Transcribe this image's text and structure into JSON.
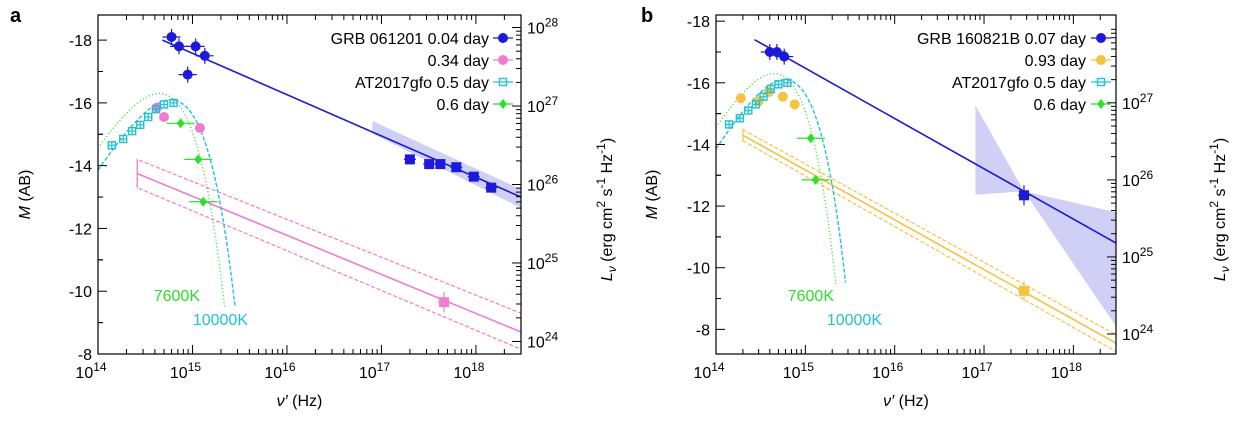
{
  "chart_data": [
    {
      "type": "scatter",
      "panel_label": "a",
      "xlabel_symbol": "ν′",
      "xlabel_unit": " (Hz)",
      "ylabel_symbol": "M",
      "ylabel_unit": " (AB)",
      "y2label_symbol": "L",
      "y2label_sub": "ν",
      "y2label_unit": " (erg cm",
      "y2label_rest": [
        " s",
        " Hz",
        ")"
      ],
      "xscale": "log",
      "xlim": [
        100000000000000.0,
        3e+18
      ],
      "ylim": [
        -8,
        -18.8
      ],
      "yinverted": true,
      "xticks": [
        14,
        15,
        16,
        17,
        18
      ],
      "yticks": [
        -8,
        -10,
        -12,
        -14,
        -16,
        -18
      ],
      "y2ticks": [
        24,
        25,
        26,
        27,
        28
      ],
      "colors": {
        "grb_early": "#1a1ad8",
        "grb_late": "#f07cd0",
        "at_early": "#22c2d2",
        "at_late": "#2ce02c",
        "band": "#c8c8f4"
      },
      "legend": [
        "GRB 061201 0.04 day",
        "0.34 day",
        "AT2017gfo 0.5 day",
        "0.6 day"
      ],
      "legend_position": "top-right",
      "series": [
        {
          "name": "GRB 061201 0.04 day",
          "marker": "circle",
          "color": "#1a1ad8",
          "points": [
            [
              600000000000000.0,
              -18.1
            ],
            [
              720000000000000.0,
              -17.8
            ],
            [
              890000000000000.0,
              -16.9
            ],
            [
              1080000000000000.0,
              -17.8
            ],
            [
              1350000000000000.0,
              -17.5
            ]
          ]
        },
        {
          "name": "GRB 061201 0.04 day X-ray",
          "marker": "square",
          "color": "#1a1ad8",
          "points": [
            [
              2e+17,
              -14.2
            ],
            [
              3.2e+17,
              -14.05
            ],
            [
              4.2e+17,
              -14.05
            ],
            [
              6.2e+17,
              -13.95
            ],
            [
              9.5e+17,
              -13.65
            ],
            [
              1.45e+18,
              -13.3
            ]
          ]
        },
        {
          "name": "0.34 day",
          "marker": "circle",
          "color": "#f07cd0",
          "points": [
            [
              420000000000000.0,
              -15.85
            ],
            [
              500000000000000.0,
              -15.55
            ],
            [
              1200000000000000.0,
              -15.2
            ]
          ]
        },
        {
          "name": "0.34 day X-ray",
          "marker": "square",
          "color": "#f07cd0",
          "points": [
            [
              4.6e+17,
              -9.65
            ]
          ]
        },
        {
          "name": "AT2017gfo 0.5 day",
          "marker": "open-square",
          "color": "#22c2d2",
          "points": [
            [
              140000000000000.0,
              -14.65
            ],
            [
              185000000000000.0,
              -14.85
            ],
            [
              230000000000000.0,
              -15.1
            ],
            [
              280000000000000.0,
              -15.3
            ],
            [
              340000000000000.0,
              -15.55
            ],
            [
              410000000000000.0,
              -15.8
            ],
            [
              500000000000000.0,
              -15.95
            ],
            [
              630000000000000.0,
              -16.0
            ]
          ]
        },
        {
          "name": "0.6 day",
          "marker": "diamond",
          "color": "#2ce02c",
          "points": [
            [
              750000000000000.0,
              -15.35
            ],
            [
              1150000000000000.0,
              -14.2
            ],
            [
              1300000000000000.0,
              -12.85
            ]
          ]
        }
      ],
      "model_lines": [
        {
          "name": "GRB 061201 power law",
          "color": "#1a1ad8",
          "points": [
            [
              480000000000000.0,
              -18.0
            ],
            [
              3e+18,
              -13.0
            ]
          ]
        },
        {
          "name": "0.34 day power law",
          "color": "#f07cd0",
          "points": [
            [
              260000000000000.0,
              -13.75
            ],
            [
              3e+18,
              -8.7
            ]
          ]
        }
      ],
      "blackbody": [
        {
          "label": "7600K",
          "color": "#2ce02c",
          "dotted": true,
          "peak_freq": 750000000000000.0,
          "peak_mag": -16.3
        },
        {
          "label": "10000K",
          "color": "#22c2d2",
          "dotted": false,
          "peak_freq": 820000000000000.0,
          "peak_mag": -16.1
        }
      ]
    },
    {
      "type": "scatter",
      "panel_label": "b",
      "xlabel_symbol": "ν′",
      "xlabel_unit": " (Hz)",
      "ylabel_symbol": "M",
      "ylabel_unit": " (AB)",
      "y2label_symbol": "L",
      "y2label_sub": "ν",
      "y2label_unit": " (erg cm",
      "y2label_rest": [
        " s",
        " Hz",
        ")"
      ],
      "xscale": "log",
      "xlim": [
        100000000000000.0,
        3e+18
      ],
      "ylim": [
        -7.2,
        -18.2
      ],
      "yinverted": true,
      "xticks": [
        14,
        15,
        16,
        17,
        18
      ],
      "yticks": [
        -8,
        -10,
        -12,
        -14,
        -16,
        -18
      ],
      "y2ticks": [
        24,
        25,
        26,
        27
      ],
      "colors": {
        "grb_early": "#1a1ad8",
        "grb_late": "#f5c242",
        "at_early": "#22c2d2",
        "at_late": "#2ce02c",
        "band": "#c8c8f4"
      },
      "legend": [
        "GRB 160821B 0.07 day",
        "0.93 day",
        "AT2017gfo 0.5 day",
        "0.6 day"
      ],
      "legend_position": "top-right",
      "series": [
        {
          "name": "GRB 160821B 0.07 day",
          "marker": "circle",
          "color": "#1a1ad8",
          "points": [
            [
              400000000000000.0,
              -17.0
            ],
            [
              480000000000000.0,
              -17.0
            ],
            [
              580000000000000.0,
              -16.85
            ]
          ]
        },
        {
          "name": "GRB 160821B 0.07 day X-ray",
          "marker": "square",
          "color": "#1a1ad8",
          "points": [
            [
              2.8e+17,
              -12.35
            ]
          ]
        },
        {
          "name": "0.93 day",
          "marker": "circle",
          "color": "#f5c242",
          "points": [
            [
              190000000000000.0,
              -15.5
            ],
            [
              300000000000000.0,
              -15.4
            ],
            [
              390000000000000.0,
              -15.7
            ],
            [
              560000000000000.0,
              -15.55
            ],
            [
              760000000000000.0,
              -15.3
            ]
          ]
        },
        {
          "name": "0.93 day X-ray",
          "marker": "square",
          "color": "#f5c242",
          "points": [
            [
              2.8e+17,
              -9.25
            ]
          ]
        },
        {
          "name": "AT2017gfo 0.5 day",
          "marker": "open-square",
          "color": "#22c2d2",
          "points": [
            [
              140000000000000.0,
              -14.65
            ],
            [
              185000000000000.0,
              -14.85
            ],
            [
              230000000000000.0,
              -15.1
            ],
            [
              280000000000000.0,
              -15.3
            ],
            [
              340000000000000.0,
              -15.55
            ],
            [
              410000000000000.0,
              -15.8
            ],
            [
              500000000000000.0,
              -15.95
            ],
            [
              630000000000000.0,
              -16.0
            ]
          ]
        },
        {
          "name": "0.6 day",
          "marker": "diamond",
          "color": "#2ce02c",
          "points": [
            [
              1150000000000000.0,
              -14.2
            ],
            [
              1300000000000000.0,
              -12.85
            ]
          ]
        }
      ],
      "model_lines": [
        {
          "name": "GRB 160821B power law",
          "color": "#1a1ad8",
          "points": [
            [
              270000000000000.0,
              -17.4
            ],
            [
              3e+18,
              -10.8
            ]
          ]
        },
        {
          "name": "0.93 day power law",
          "color": "#f5c242",
          "points": [
            [
              200000000000000.0,
              -14.3
            ],
            [
              3e+18,
              -7.55
            ]
          ]
        }
      ],
      "blackbody": [
        {
          "label": "7600K",
          "color": "#2ce02c",
          "dotted": true,
          "peak_freq": 750000000000000.0,
          "peak_mag": -16.3
        },
        {
          "label": "10000K",
          "color": "#22c2d2",
          "dotted": false,
          "peak_freq": 820000000000000.0,
          "peak_mag": -16.1
        }
      ]
    }
  ]
}
